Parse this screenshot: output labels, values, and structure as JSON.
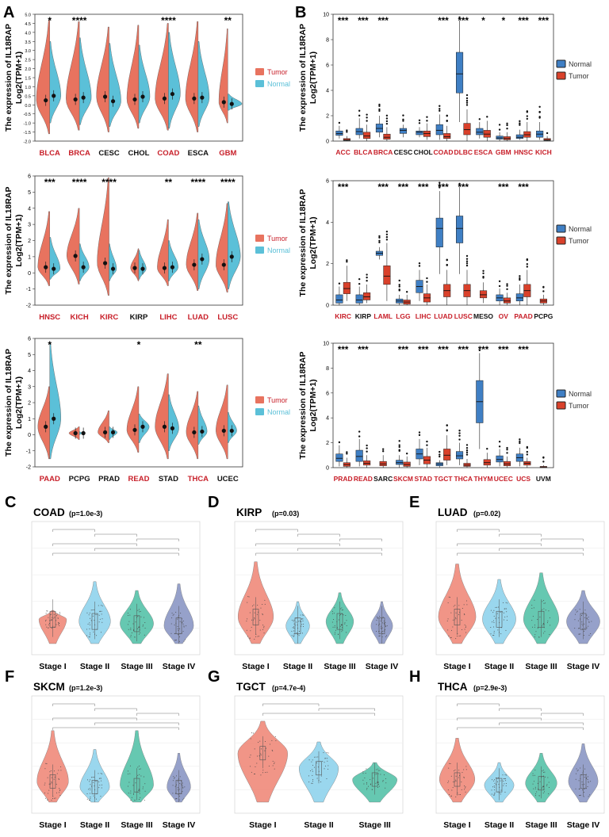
{
  "colors": {
    "tumor": "#e8735f",
    "normal": "#5bc0d8",
    "box_normal": "#3f7fc4",
    "box_tumor": "#d9412b",
    "red_label": "#c8202a",
    "black_label": "#111111",
    "stage1": "#f08a7a",
    "stage2": "#8fd3ec",
    "stage3": "#55c2a8",
    "stage4": "#8b97c4"
  },
  "panel_letters": {
    "A": "A",
    "B": "B",
    "C": "C",
    "D": "D",
    "E": "E",
    "F": "F",
    "G": "G",
    "H": "H"
  },
  "ylabel_line1": "The expression of IL18RAP",
  "ylabel_line2": "Log2(TPM+1)",
  "legend_tumor": "Tumor",
  "legend_normal": "Normal",
  "chart_data": [
    {
      "id": "A1",
      "type": "split-violin",
      "ylim": [
        -2,
        5
      ],
      "yticks": [
        "-2.0",
        "-1.5",
        "-1.0",
        "-0.5",
        "0.0",
        "0.5",
        "1.0",
        "1.5",
        "2.0",
        "2.5",
        "3.0",
        "3.5",
        "4.0",
        "4.5",
        "5.0"
      ],
      "categories": [
        "BLCA",
        "BRCA",
        "CESC",
        "CHOL",
        "COAD",
        "ESCA",
        "GBM"
      ],
      "label_red": [
        true,
        true,
        false,
        false,
        true,
        false,
        true
      ],
      "sig": [
        "*",
        "****",
        "",
        "",
        "****",
        "",
        "**"
      ],
      "series": [
        {
          "name": "Tumor",
          "values": [
            0.25,
            0.3,
            0.45,
            0.3,
            0.35,
            0.35,
            0.15
          ]
        },
        {
          "name": "Normal",
          "values": [
            0.5,
            0.4,
            0.2,
            0.45,
            0.6,
            0.4,
            0.05
          ]
        }
      ],
      "widths_t": [
        0.9,
        0.9,
        0.85,
        0.8,
        0.9,
        0.85,
        0.6
      ],
      "widths_n": [
        0.75,
        0.8,
        0.8,
        0.75,
        0.8,
        0.75,
        0.95
      ],
      "ranges_t": [
        [
          -1.6,
          4.7
        ],
        [
          -1.4,
          4.6
        ],
        [
          -1.5,
          4.3
        ],
        [
          -1.3,
          4.4
        ],
        [
          -1.4,
          4.5
        ],
        [
          -1.5,
          4.6
        ],
        [
          -1,
          4.2
        ]
      ],
      "ranges_n": [
        [
          -1,
          3.5
        ],
        [
          -1.1,
          3.7
        ],
        [
          -1.2,
          3.4
        ],
        [
          -1,
          3.3
        ],
        [
          -1.3,
          4
        ],
        [
          -1.2,
          3.5
        ],
        [
          -0.3,
          0.6
        ]
      ]
    },
    {
      "id": "A2",
      "type": "split-violin",
      "ylim": [
        -2,
        6
      ],
      "yticks": [
        "-2",
        "-1",
        "0",
        "1",
        "2",
        "3",
        "4",
        "5",
        "6"
      ],
      "categories": [
        "HNSC",
        "KICH",
        "KIRC",
        "KIRP",
        "LIHC",
        "LUAD",
        "LUSC"
      ],
      "label_red": [
        true,
        true,
        true,
        false,
        true,
        true,
        true
      ],
      "sig": [
        "***",
        "****",
        "****",
        "",
        "**",
        "****",
        "****"
      ],
      "series": [
        {
          "name": "Tumor",
          "values": [
            0.35,
            1.05,
            0.6,
            0.3,
            0.3,
            0.5,
            0.5
          ]
        },
        {
          "name": "Normal",
          "values": [
            0.25,
            0.35,
            0.25,
            0.25,
            0.35,
            0.85,
            1
          ]
        }
      ],
      "widths_t": [
        0.8,
        0.85,
        0.8,
        0.55,
        0.75,
        0.8,
        0.8
      ],
      "widths_n": [
        0.7,
        0.65,
        0.5,
        0.5,
        0.65,
        0.75,
        0.85
      ],
      "ranges_t": [
        [
          -0.8,
          3.8
        ],
        [
          -0.7,
          4
        ],
        [
          -1.4,
          5.9
        ],
        [
          -0.5,
          1.5
        ],
        [
          -0.8,
          3.3
        ],
        [
          -1.1,
          3.7
        ],
        [
          -1.2,
          4.3
        ]
      ],
      "ranges_n": [
        [
          -0.4,
          2.2
        ],
        [
          -0.5,
          1.8
        ],
        [
          -0.5,
          1.8
        ],
        [
          -0.4,
          1.4
        ],
        [
          -0.5,
          2
        ],
        [
          -1,
          3.3
        ],
        [
          -1,
          4.4
        ]
      ]
    },
    {
      "id": "A3",
      "type": "split-violin",
      "ylim": [
        -2,
        6
      ],
      "yticks": [
        "-2",
        "-1",
        "0",
        "1",
        "2",
        "3",
        "4",
        "5",
        "6"
      ],
      "categories": [
        "PAAD",
        "PCPG",
        "PRAD",
        "READ",
        "STAD",
        "THCA",
        "UCEC"
      ],
      "label_red": [
        true,
        false,
        false,
        true,
        false,
        true,
        false
      ],
      "sig": [
        "*",
        "",
        "",
        "*",
        "",
        "**",
        ""
      ],
      "series": [
        {
          "name": "Tumor",
          "values": [
            0.5,
            0.1,
            0.15,
            0.3,
            0.5,
            0.15,
            0.25
          ]
        },
        {
          "name": "Normal",
          "values": [
            1,
            0.1,
            0.15,
            0.5,
            0.4,
            0.2,
            0.25
          ]
        }
      ],
      "widths_t": [
        0.8,
        0.7,
        0.75,
        0.8,
        0.9,
        0.8,
        0.8
      ],
      "widths_n": [
        0.75,
        0.2,
        0.55,
        0.7,
        0.7,
        0.6,
        0.6
      ],
      "ranges_t": [
        [
          -1.5,
          3
        ],
        [
          -0.3,
          0.5
        ],
        [
          -0.5,
          1.5
        ],
        [
          -1.1,
          3
        ],
        [
          -1.5,
          3.8
        ],
        [
          -1.5,
          2.7
        ],
        [
          -1.5,
          3.1
        ]
      ],
      "ranges_n": [
        [
          -1.5,
          5.7
        ],
        [
          0,
          0.2
        ],
        [
          -0.3,
          0.5
        ],
        [
          -0.5,
          1.3
        ],
        [
          -1,
          2.5
        ],
        [
          -0.6,
          1.8
        ],
        [
          -0.5,
          1.4
        ]
      ]
    },
    {
      "id": "B1",
      "type": "box",
      "ylim": [
        0,
        10
      ],
      "yticks": [
        "0",
        "2",
        "4",
        "6",
        "8",
        "10"
      ],
      "categories": [
        "ACC",
        "BLCA",
        "BRCA",
        "CESC",
        "CHOL",
        "COAD",
        "DLBC",
        "ESCA",
        "GBM",
        "HNSC",
        "KICH"
      ],
      "label_red": [
        true,
        true,
        true,
        false,
        false,
        true,
        true,
        true,
        true,
        true,
        true
      ],
      "sig": [
        "***",
        "***",
        "***",
        "",
        "",
        "***",
        "***",
        "*",
        "*",
        "***",
        "***"
      ],
      "normal": [
        [
          0.2,
          0.45,
          0.6,
          0.8,
          1.2
        ],
        [
          0.2,
          0.5,
          0.75,
          1,
          1.8
        ],
        [
          0.3,
          0.7,
          1,
          1.35,
          2
        ],
        [
          0.3,
          0.6,
          0.85,
          1,
          1.3
        ],
        [
          0.3,
          0.5,
          0.7,
          0.8,
          1.1
        ],
        [
          0.1,
          0.5,
          0.85,
          1.3,
          2.1
        ],
        [
          1.5,
          3.8,
          5.3,
          7,
          9.5
        ],
        [
          0.2,
          0.5,
          0.7,
          1,
          1.5
        ],
        [
          0,
          0.15,
          0.25,
          0.4,
          0.7
        ],
        [
          0.1,
          0.2,
          0.3,
          0.5,
          0.9
        ],
        [
          0.1,
          0.3,
          0.55,
          0.8,
          1.5
        ]
      ],
      "tumor": [
        [
          0,
          0.05,
          0.1,
          0.2,
          0.4
        ],
        [
          0,
          0.2,
          0.4,
          0.7,
          1.3
        ],
        [
          0,
          0.15,
          0.3,
          0.55,
          1.1
        ],
        null,
        [
          0.1,
          0.35,
          0.6,
          0.8,
          1.4
        ],
        [
          0,
          0.2,
          0.35,
          0.6,
          1.2
        ],
        [
          0,
          0.5,
          0.9,
          1.4,
          2.5
        ],
        [
          0,
          0.3,
          0.55,
          0.85,
          1.6
        ],
        [
          0,
          0.1,
          0.2,
          0.35,
          0.7
        ],
        [
          0,
          0.3,
          0.5,
          0.75,
          1.5
        ],
        [
          0,
          0.05,
          0.1,
          0.2,
          0.4
        ]
      ]
    },
    {
      "id": "B2",
      "type": "box",
      "ylim": [
        0,
        6
      ],
      "yticks": [
        "0",
        "2",
        "4",
        "6"
      ],
      "categories": [
        "KIRC",
        "KIRP",
        "LAML",
        "LGG",
        "LIHC",
        "LUAD",
        "LUSC",
        "MESO",
        "OV",
        "PAAD",
        "PCPG"
      ],
      "label_red": [
        true,
        false,
        true,
        true,
        true,
        true,
        true,
        false,
        true,
        true,
        false
      ],
      "sig": [
        "***",
        "",
        "***",
        "***",
        "***",
        "***",
        "***",
        "",
        "***",
        "***",
        ""
      ],
      "normal": [
        [
          0,
          0.1,
          0.25,
          0.5,
          0.9
        ],
        [
          0,
          0.1,
          0.25,
          0.5,
          0.9
        ],
        [
          2.2,
          2.4,
          2.5,
          2.6,
          2.8
        ],
        [
          0,
          0.1,
          0.2,
          0.3,
          0.5
        ],
        [
          0.2,
          0.6,
          0.9,
          1.2,
          1.7
        ],
        [
          1.5,
          2.8,
          3.7,
          4.2,
          5.5
        ],
        [
          1.5,
          3,
          3.7,
          4.3,
          5.7
        ],
        null,
        [
          0,
          0.2,
          0.35,
          0.5,
          0.8
        ],
        [
          0,
          0.2,
          0.35,
          0.55,
          1
        ],
        null
      ],
      "tumor": [
        [
          0.2,
          0.55,
          0.8,
          1.1,
          1.9
        ],
        [
          0.1,
          0.25,
          0.4,
          0.6,
          1
        ],
        [
          0.2,
          1,
          1.4,
          1.9,
          3
        ],
        [
          0,
          0.05,
          0.15,
          0.25,
          0.5
        ],
        [
          0,
          0.15,
          0.35,
          0.55,
          1
        ],
        [
          0,
          0.4,
          0.7,
          1,
          1.7
        ],
        [
          0,
          0.4,
          0.7,
          1,
          1.7
        ],
        [
          0.1,
          0.35,
          0.5,
          0.7,
          1.1
        ],
        [
          0,
          0.1,
          0.2,
          0.35,
          0.6
        ],
        [
          0,
          0.4,
          0.7,
          1,
          1.7
        ],
        [
          0,
          0.1,
          0.2,
          0.3,
          0.5
        ]
      ]
    },
    {
      "id": "B3",
      "type": "box",
      "ylim": [
        0,
        10
      ],
      "yticks": [
        "0",
        "2",
        "4",
        "6",
        "8",
        "10"
      ],
      "categories": [
        "PRAD",
        "READ",
        "SARC",
        "SKCM",
        "STAD",
        "TGCT",
        "THCA",
        "THYM",
        "UCEC",
        "UCS",
        "UVM"
      ],
      "label_red": [
        true,
        true,
        false,
        true,
        true,
        true,
        true,
        true,
        true,
        true,
        false
      ],
      "sig": [
        "***",
        "***",
        "",
        "***",
        "***",
        "***",
        "***",
        "***",
        "***",
        "***",
        ""
      ],
      "normal": [
        [
          0.1,
          0.5,
          0.75,
          1.1,
          1.8
        ],
        [
          0.1,
          0.5,
          0.9,
          1.4,
          2.3
        ],
        null,
        [
          0,
          0.25,
          0.4,
          0.6,
          1
        ],
        [
          0.2,
          0.7,
          1.1,
          1.5,
          2.3
        ],
        [
          0,
          0.15,
          0.3,
          0.4,
          0.6
        ],
        [
          0.2,
          0.7,
          0.95,
          1.3,
          2
        ],
        [
          1.5,
          3.6,
          5.3,
          7,
          9.2
        ],
        [
          0.1,
          0.45,
          0.65,
          0.95,
          1.5
        ],
        [
          0.1,
          0.5,
          0.8,
          1.1,
          1.6
        ],
        null
      ],
      "tumor": [
        [
          0,
          0.1,
          0.25,
          0.4,
          0.8
        ],
        [
          0,
          0.2,
          0.35,
          0.55,
          1
        ],
        [
          0,
          0.15,
          0.3,
          0.5,
          1
        ],
        [
          0,
          0.1,
          0.25,
          0.45,
          0.9
        ],
        [
          0,
          0.3,
          0.6,
          0.9,
          1.6
        ],
        [
          0.2,
          0.6,
          1,
          1.5,
          2.6
        ],
        [
          0,
          0.1,
          0.2,
          0.35,
          0.7
        ],
        [
          0,
          0.2,
          0.4,
          0.65,
          1.2
        ],
        [
          0,
          0.15,
          0.3,
          0.5,
          0.9
        ],
        [
          0,
          0.2,
          0.35,
          0.5,
          0.8
        ],
        [
          0,
          0,
          0.05,
          0.1,
          0.2
        ]
      ]
    },
    {
      "id": "C",
      "type": "violin-stage",
      "cancer": "COAD",
      "p": "(p=1.0e-3)",
      "stages": [
        "Stage I",
        "Stage II",
        "Stage III",
        "Stage IV"
      ],
      "medians": [
        0.55,
        0.5,
        0.45,
        0.4
      ],
      "widths": [
        0.7,
        0.8,
        0.85,
        0.75
      ],
      "tops": [
        0.75,
        1.4,
        1.2,
        1.35
      ]
    },
    {
      "id": "D",
      "type": "violin-stage",
      "cancer": "KIRP",
      "p": "(p=0.03)",
      "stages": [
        "Stage I",
        "Stage II",
        "Stage III",
        "Stage IV"
      ],
      "medians": [
        0.6,
        0.4,
        0.5,
        0.4
      ],
      "widths": [
        0.9,
        0.6,
        0.7,
        0.55
      ],
      "tops": [
        1.85,
        0.95,
        1.15,
        0.95
      ]
    },
    {
      "id": "E",
      "type": "violin-stage",
      "cancer": "LUAD",
      "p": "(p=0.02)",
      "stages": [
        "Stage I",
        "Stage II",
        "Stage III",
        "Stage IV"
      ],
      "medians": [
        0.6,
        0.55,
        0.55,
        0.5
      ],
      "widths": [
        0.95,
        0.85,
        0.9,
        0.85
      ],
      "tops": [
        1.8,
        1.45,
        1.6,
        1.2
      ]
    },
    {
      "id": "F",
      "type": "violin-stage",
      "cancer": "SKCM",
      "p": "(p=1.2e-3)",
      "stages": [
        "Stage I",
        "Stage II",
        "Stage III",
        "Stage IV"
      ],
      "medians": [
        0.55,
        0.4,
        0.45,
        0.4
      ],
      "widths": [
        0.8,
        0.75,
        0.85,
        0.6
      ],
      "tops": [
        1.9,
        1.4,
        1.9,
        1.3
      ]
    },
    {
      "id": "G",
      "type": "violin-stage",
      "cancer": "TGCT",
      "p": "(p=4.7e-4)",
      "stages": [
        "Stage I",
        "Stage II",
        "Stage III"
      ],
      "medians": [
        1.3,
        0.9,
        0.6
      ],
      "widths": [
        0.95,
        0.75,
        0.85
      ],
      "tops": [
        2.15,
        1.6,
        1.05
      ]
    },
    {
      "id": "H",
      "type": "violin-stage",
      "cancer": "THCA",
      "p": "(p=2.9e-3)",
      "stages": [
        "Stage I",
        "Stage II",
        "Stage III",
        "Stage IV"
      ],
      "medians": [
        0.6,
        0.45,
        0.5,
        0.55
      ],
      "widths": [
        0.9,
        0.75,
        0.8,
        0.75
      ],
      "tops": [
        1.7,
        1.05,
        1.3,
        1.55
      ]
    }
  ]
}
